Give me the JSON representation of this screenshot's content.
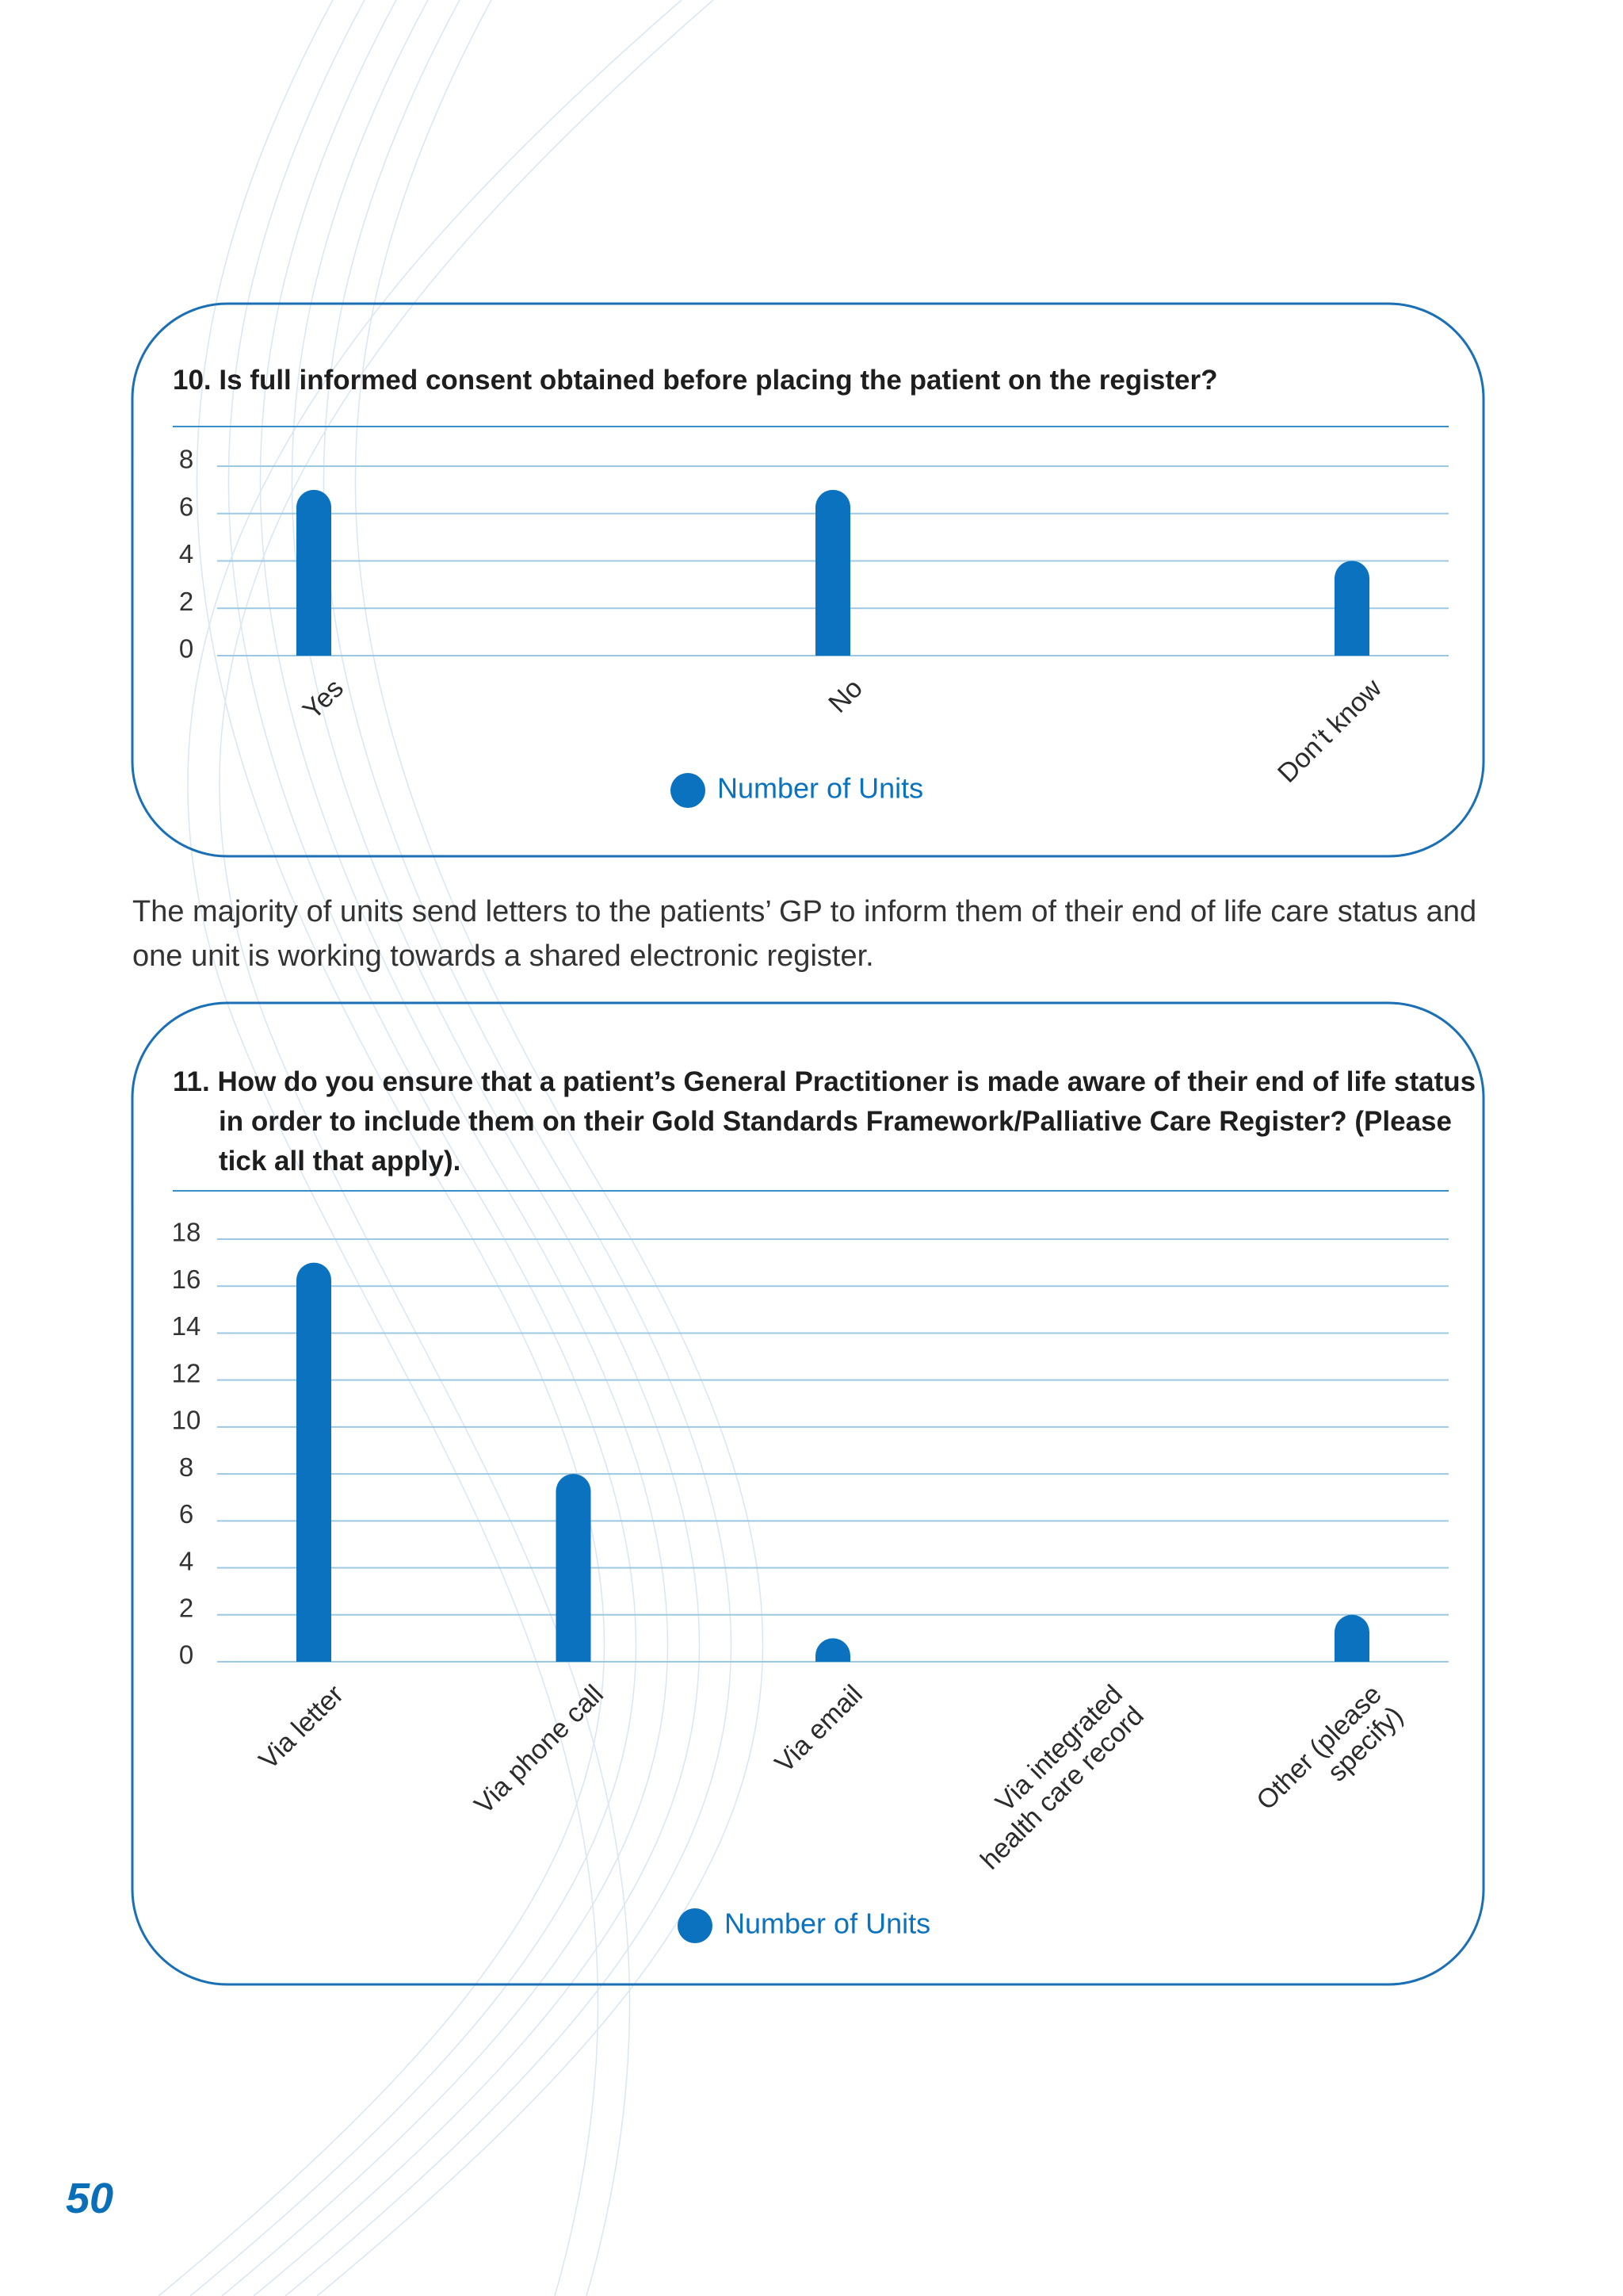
{
  "chart_data": [
    {
      "type": "bar",
      "title": "10. Is full informed consent obtained before placing the patient on the register?",
      "categories": [
        "Yes",
        "No",
        "Don’t know"
      ],
      "series": [
        {
          "name": "Number of Units",
          "color": "#0a72bf",
          "values": [
            7,
            7,
            4
          ]
        }
      ],
      "ylim": [
        0,
        8
      ],
      "yticks": [
        0,
        2,
        4,
        6,
        8
      ],
      "grid": true
    },
    {
      "type": "bar",
      "title": "11. How do you ensure that a patient’s General Practitioner is made aware of their end of life status in order to include them on their Gold Standards Framework/Palliative Care Register? (Please tick all that apply).",
      "categories": [
        "Via letter",
        "Via phone call",
        "Via email",
        "Via integrated health care record",
        "Other (please specify)"
      ],
      "series": [
        {
          "name": "Number of Units",
          "color": "#0a72bf",
          "values": [
            17,
            8,
            1,
            0,
            2
          ]
        }
      ],
      "ylim": [
        0,
        18
      ],
      "yticks": [
        0,
        2,
        4,
        6,
        8,
        10,
        12,
        14,
        16,
        18
      ],
      "grid": true
    }
  ],
  "paragraph": "The majority of units send letters to the patients’ GP to inform them of their end of life care status and one unit is working towards a shared electronic register.",
  "page_number": "50"
}
